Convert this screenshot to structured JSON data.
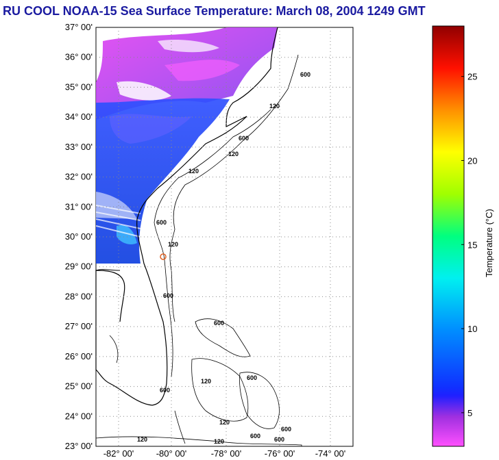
{
  "title": "RU COOL  NOAA-15  Sea Surface Temperature:  March 08, 2004 1249 GMT",
  "map": {
    "lat_ticks": [
      "37° 00'",
      "36° 00'",
      "35° 00'",
      "34° 00'",
      "33° 00'",
      "32° 00'",
      "31° 00'",
      "30° 00'",
      "29° 00'",
      "28° 00'",
      "27° 00'",
      "26° 00'",
      "25° 00'",
      "24° 00'",
      "23° 00'"
    ],
    "lon_ticks": [
      "-82° 00'",
      "-80° 00'",
      "-78° 00'",
      "-76° 00'",
      "-74° 00'"
    ],
    "grid": true,
    "contour_labels": [
      "600",
      "120",
      "600",
      "120",
      "120",
      "600",
      "120",
      "600",
      "600",
      "600",
      "600",
      "120",
      "120",
      "120",
      "600",
      "600",
      "120",
      "600"
    ],
    "colors": {
      "land": "#ffffff",
      "contour": "#000000",
      "grid": "#777777",
      "marker": "#e06020"
    }
  },
  "colorbar": {
    "label": "Temperature (°C)",
    "ticks": [
      "25",
      "20",
      "15",
      "10",
      "5"
    ],
    "range": [
      3,
      28
    ],
    "colors": [
      "#ff40ff",
      "#9a30e0",
      "#1a1aff",
      "#0080ff",
      "#00e0ff",
      "#00ff90",
      "#40ff00",
      "#ffff00",
      "#ffa000",
      "#ff2000",
      "#a00000"
    ]
  }
}
